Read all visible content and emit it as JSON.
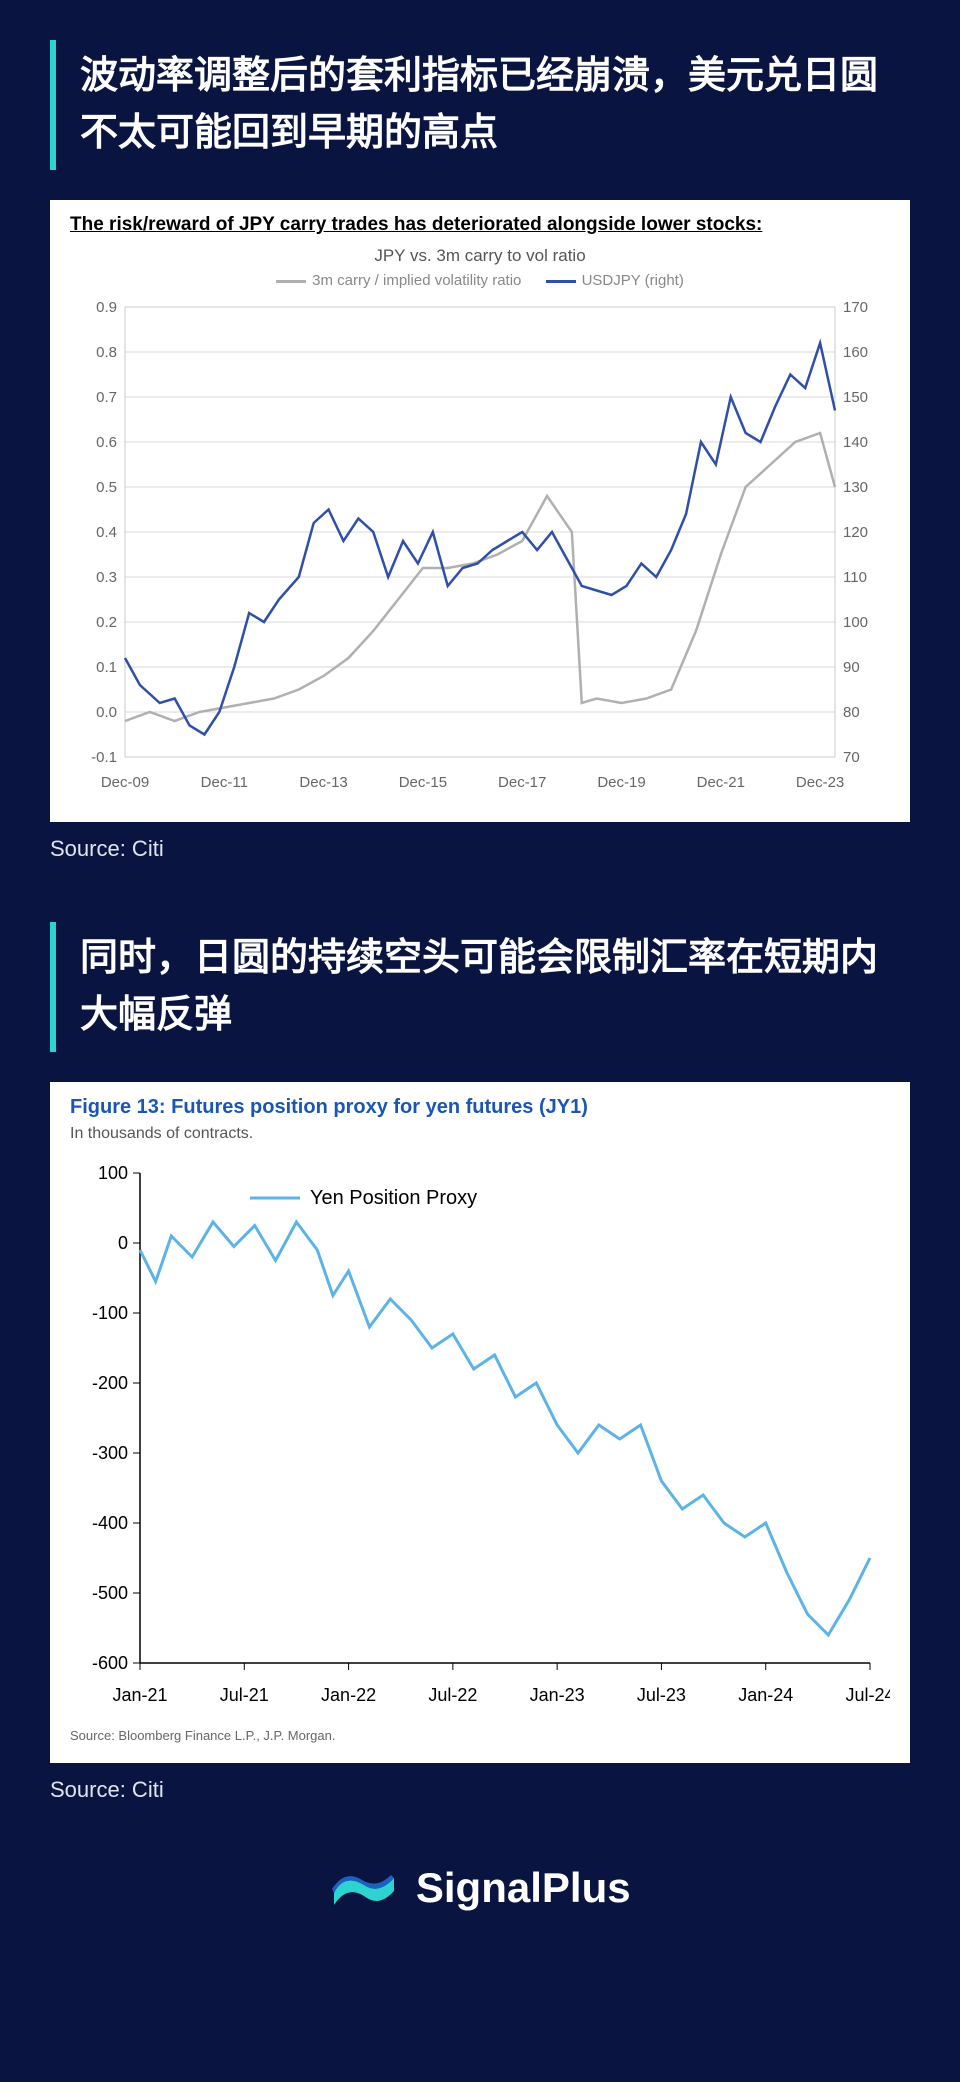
{
  "section1": {
    "title": "波动率调整后的套利指标已经崩溃，美元兑日圆不太可能回到早期的高点",
    "source": "Source: Citi",
    "chart": {
      "type": "line-dual-axis",
      "card_title": "The risk/reward of JPY carry trades has deteriorated alongside lower stocks:",
      "subtitle": "JPY vs. 3m carry to vol ratio",
      "legend": [
        {
          "label": "3m carry / implied volatility ratio",
          "color": "#b0b0b0"
        },
        {
          "label": "USDJPY (right)",
          "color": "#2f4fa8"
        }
      ],
      "x_labels": [
        "Dec-09",
        "Dec-11",
        "Dec-13",
        "Dec-15",
        "Dec-17",
        "Dec-19",
        "Dec-21",
        "Dec-23"
      ],
      "y_left": {
        "min": -0.1,
        "max": 0.9,
        "step": 0.1,
        "decimals": 1
      },
      "y_right": {
        "min": 70,
        "max": 170,
        "step": 10,
        "decimals": 0
      },
      "grid_color": "#d9d9d9",
      "axis_text_color": "#666666",
      "background": "#ffffff",
      "series_grey": [
        [
          0,
          -0.02
        ],
        [
          0.5,
          0.0
        ],
        [
          1,
          -0.02
        ],
        [
          1.5,
          0.0
        ],
        [
          2,
          0.01
        ],
        [
          2.5,
          0.02
        ],
        [
          3,
          0.03
        ],
        [
          3.5,
          0.05
        ],
        [
          4,
          0.08
        ],
        [
          4.5,
          0.12
        ],
        [
          5,
          0.18
        ],
        [
          5.5,
          0.25
        ],
        [
          6,
          0.32
        ],
        [
          6.5,
          0.32
        ],
        [
          7,
          0.33
        ],
        [
          7.5,
          0.35
        ],
        [
          8,
          0.38
        ],
        [
          8.5,
          0.48
        ],
        [
          9,
          0.4
        ],
        [
          9.2,
          0.02
        ],
        [
          9.5,
          0.03
        ],
        [
          10,
          0.02
        ],
        [
          10.5,
          0.03
        ],
        [
          11,
          0.05
        ],
        [
          11.5,
          0.18
        ],
        [
          12,
          0.35
        ],
        [
          12.5,
          0.5
        ],
        [
          13,
          0.55
        ],
        [
          13.5,
          0.6
        ],
        [
          14,
          0.62
        ],
        [
          14.3,
          0.5
        ]
      ],
      "series_blue": [
        [
          0,
          0.12
        ],
        [
          0.3,
          0.06
        ],
        [
          0.7,
          0.02
        ],
        [
          1,
          0.03
        ],
        [
          1.3,
          -0.03
        ],
        [
          1.6,
          -0.05
        ],
        [
          1.9,
          0.0
        ],
        [
          2.2,
          0.1
        ],
        [
          2.5,
          0.22
        ],
        [
          2.8,
          0.2
        ],
        [
          3.1,
          0.25
        ],
        [
          3.5,
          0.3
        ],
        [
          3.8,
          0.42
        ],
        [
          4.1,
          0.45
        ],
        [
          4.4,
          0.38
        ],
        [
          4.7,
          0.43
        ],
        [
          5,
          0.4
        ],
        [
          5.3,
          0.3
        ],
        [
          5.6,
          0.38
        ],
        [
          5.9,
          0.33
        ],
        [
          6.2,
          0.4
        ],
        [
          6.5,
          0.28
        ],
        [
          6.8,
          0.32
        ],
        [
          7.1,
          0.33
        ],
        [
          7.4,
          0.36
        ],
        [
          7.7,
          0.38
        ],
        [
          8,
          0.4
        ],
        [
          8.3,
          0.36
        ],
        [
          8.6,
          0.4
        ],
        [
          8.9,
          0.34
        ],
        [
          9.2,
          0.28
        ],
        [
          9.5,
          0.27
        ],
        [
          9.8,
          0.26
        ],
        [
          10.1,
          0.28
        ],
        [
          10.4,
          0.33
        ],
        [
          10.7,
          0.3
        ],
        [
          11,
          0.36
        ],
        [
          11.3,
          0.44
        ],
        [
          11.6,
          0.6
        ],
        [
          11.9,
          0.55
        ],
        [
          12.2,
          0.7
        ],
        [
          12.5,
          0.62
        ],
        [
          12.8,
          0.6
        ],
        [
          13.1,
          0.68
        ],
        [
          13.4,
          0.75
        ],
        [
          13.7,
          0.72
        ],
        [
          14,
          0.82
        ],
        [
          14.3,
          0.67
        ]
      ]
    }
  },
  "section2": {
    "title": "同时，日圆的持续空头可能会限制汇率在短期内大幅反弹",
    "source": "Source: Citi",
    "chart": {
      "type": "line",
      "fig_title": "Figure 13: Futures position proxy for yen futures (JY1)",
      "fig_sub": "In thousands of contracts.",
      "fig_source_inner": "Source: Bloomberg Finance L.P., J.P. Morgan.",
      "legend": [
        {
          "label": "Yen Position Proxy",
          "color": "#5cb3e6"
        }
      ],
      "x_labels": [
        "Jan-21",
        "Jul-21",
        "Jan-22",
        "Jul-22",
        "Jan-23",
        "Jul-23",
        "Jan-24",
        "Jul-24"
      ],
      "y": {
        "min": -600,
        "max": 100,
        "step": 100,
        "decimals": 0
      },
      "axis_text_color": "#000000",
      "line_color": "#5cb3e6",
      "background": "#ffffff",
      "series": [
        [
          0,
          -10
        ],
        [
          0.15,
          -55
        ],
        [
          0.3,
          10
        ],
        [
          0.5,
          -20
        ],
        [
          0.7,
          30
        ],
        [
          0.9,
          -5
        ],
        [
          1.1,
          25
        ],
        [
          1.3,
          -25
        ],
        [
          1.5,
          30
        ],
        [
          1.7,
          -10
        ],
        [
          1.85,
          -75
        ],
        [
          2.0,
          -40
        ],
        [
          2.2,
          -120
        ],
        [
          2.4,
          -80
        ],
        [
          2.6,
          -110
        ],
        [
          2.8,
          -150
        ],
        [
          3.0,
          -130
        ],
        [
          3.2,
          -180
        ],
        [
          3.4,
          -160
        ],
        [
          3.6,
          -220
        ],
        [
          3.8,
          -200
        ],
        [
          4.0,
          -260
        ],
        [
          4.2,
          -300
        ],
        [
          4.4,
          -260
        ],
        [
          4.6,
          -280
        ],
        [
          4.8,
          -260
        ],
        [
          5.0,
          -340
        ],
        [
          5.2,
          -380
        ],
        [
          5.4,
          -360
        ],
        [
          5.6,
          -400
        ],
        [
          5.8,
          -420
        ],
        [
          6.0,
          -400
        ],
        [
          6.2,
          -470
        ],
        [
          6.4,
          -530
        ],
        [
          6.6,
          -560
        ],
        [
          6.8,
          -510
        ],
        [
          7.0,
          -450
        ]
      ]
    }
  },
  "brand": "SignalPlus",
  "brand_colors": [
    "#3dd9d4",
    "#1e6fd9"
  ]
}
